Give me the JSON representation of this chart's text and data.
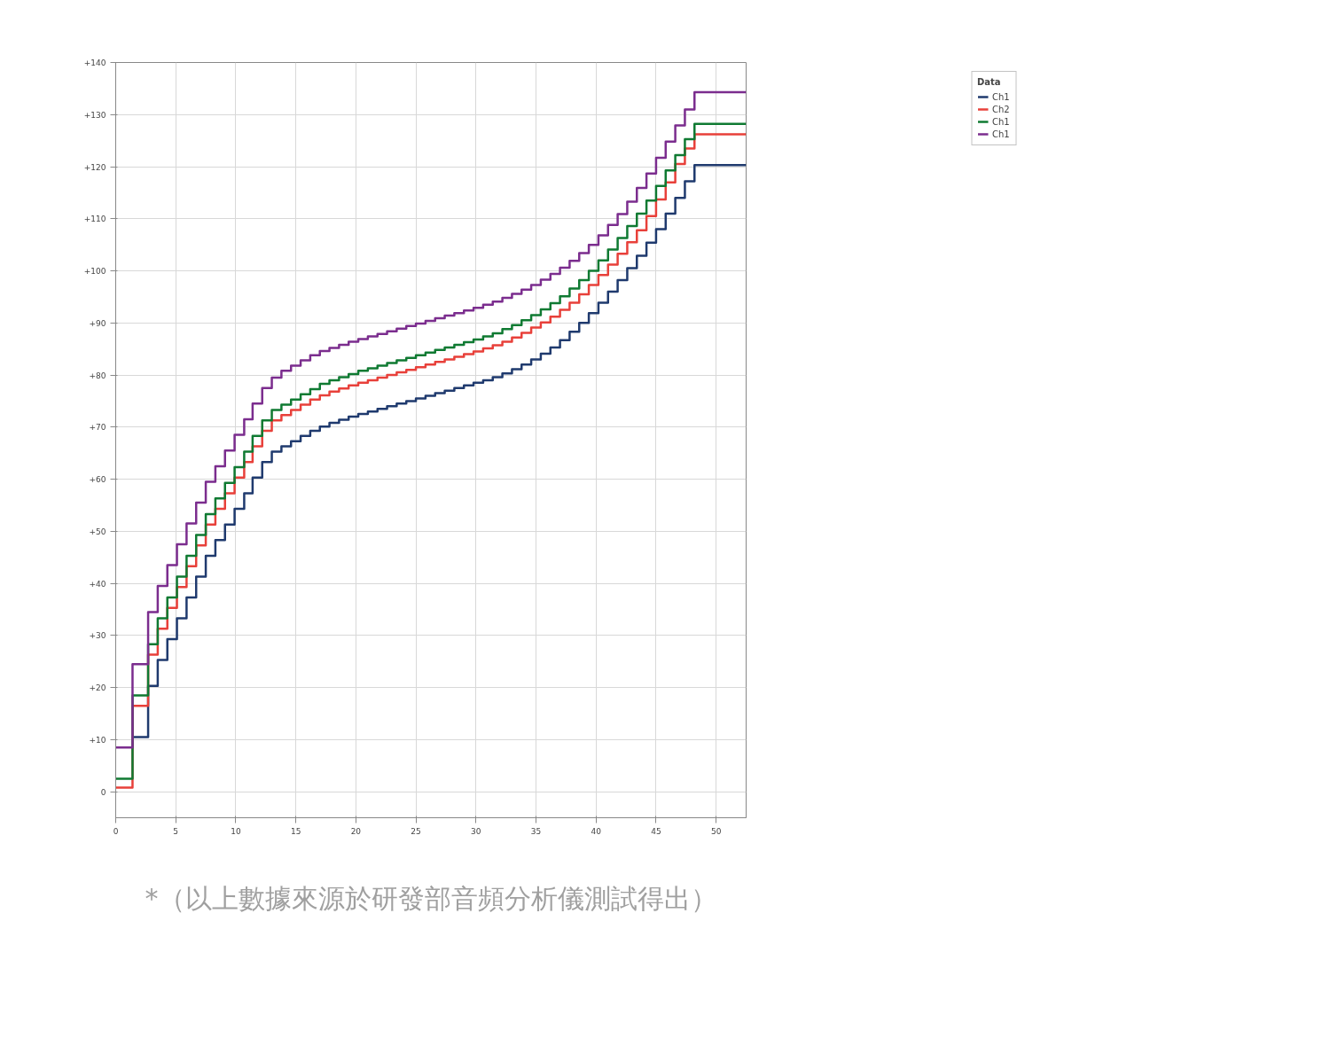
{
  "chart_data": {
    "type": "step",
    "x": [
      0,
      1.4,
      2.7,
      3.5,
      4.3,
      5.1,
      5.9,
      6.7,
      7.5,
      8.3,
      9.1,
      9.9,
      10.7,
      11.4,
      12.2,
      13.0,
      13.8,
      14.6,
      15.4,
      16.2,
      17.0,
      17.8,
      18.6,
      19.4,
      20.2,
      21.0,
      21.8,
      22.6,
      23.4,
      24.2,
      25.0,
      25.8,
      26.6,
      27.4,
      28.2,
      29.0,
      29.8,
      30.6,
      31.4,
      32.2,
      33.0,
      33.8,
      34.6,
      35.4,
      36.2,
      37.0,
      37.8,
      38.6,
      39.4,
      40.2,
      41.0,
      41.8,
      42.6,
      43.4,
      44.2,
      45.0,
      45.8,
      46.6,
      47.4,
      48.2,
      52.5
    ],
    "series": [
      {
        "name": "Ch1",
        "color": "#1f3a6e",
        "values": [
          null,
          10.5,
          20.3,
          25.3,
          29.3,
          33.3,
          37.3,
          41.3,
          45.3,
          48.3,
          51.3,
          54.3,
          57.3,
          60.3,
          63.3,
          65.3,
          66.3,
          67.3,
          68.3,
          69.3,
          70.1,
          70.8,
          71.4,
          72.0,
          72.5,
          73.0,
          73.5,
          74.0,
          74.5,
          75.0,
          75.5,
          76.0,
          76.5,
          77.0,
          77.5,
          78.0,
          78.5,
          79.0,
          79.6,
          80.3,
          81.1,
          82.0,
          83.0,
          84.1,
          85.3,
          86.7,
          88.3,
          90.0,
          91.9,
          93.9,
          96.0,
          98.2,
          100.5,
          102.9,
          105.4,
          108.0,
          111.0,
          114.0,
          117.2,
          120.3,
          120.3
        ]
      },
      {
        "name": "Ch2",
        "color": "#e8403a",
        "values": [
          0.8,
          16.5,
          26.3,
          31.3,
          35.3,
          39.3,
          43.3,
          47.3,
          51.3,
          54.3,
          57.3,
          60.3,
          63.3,
          66.3,
          69.3,
          71.3,
          72.3,
          73.3,
          74.3,
          75.3,
          76.1,
          76.8,
          77.4,
          78.0,
          78.5,
          79.0,
          79.5,
          80.0,
          80.5,
          81.0,
          81.5,
          82.0,
          82.5,
          83.0,
          83.5,
          84.0,
          84.5,
          85.1,
          85.7,
          86.4,
          87.2,
          88.1,
          89.1,
          90.1,
          91.2,
          92.5,
          93.9,
          95.5,
          97.3,
          99.2,
          101.2,
          103.3,
          105.5,
          107.8,
          110.5,
          113.7,
          117.0,
          120.5,
          123.5,
          126.2,
          126.2
        ]
      },
      {
        "name": "Ch1",
        "color": "#0f7a32",
        "values": [
          2.5,
          18.5,
          28.3,
          33.3,
          37.3,
          41.3,
          45.3,
          49.3,
          53.3,
          56.3,
          59.3,
          62.3,
          65.3,
          68.3,
          71.3,
          73.3,
          74.3,
          75.3,
          76.3,
          77.3,
          78.3,
          79.0,
          79.6,
          80.2,
          80.8,
          81.3,
          81.8,
          82.3,
          82.8,
          83.3,
          83.8,
          84.3,
          84.8,
          85.3,
          85.8,
          86.3,
          86.8,
          87.4,
          88.0,
          88.8,
          89.6,
          90.5,
          91.5,
          92.6,
          93.8,
          95.1,
          96.6,
          98.2,
          100.0,
          102.0,
          104.1,
          106.3,
          108.6,
          111.0,
          113.5,
          116.3,
          119.3,
          122.2,
          125.3,
          128.2,
          128.2
        ]
      },
      {
        "name": "Ch1",
        "color": "#7b2d8e",
        "values": [
          8.5,
          24.5,
          34.5,
          39.5,
          43.5,
          47.5,
          51.5,
          55.5,
          59.5,
          62.5,
          65.5,
          68.5,
          71.5,
          74.5,
          77.5,
          79.5,
          80.8,
          81.8,
          82.8,
          83.8,
          84.6,
          85.2,
          85.8,
          86.4,
          86.9,
          87.4,
          87.9,
          88.4,
          88.9,
          89.4,
          89.9,
          90.4,
          90.9,
          91.4,
          91.9,
          92.4,
          92.9,
          93.5,
          94.1,
          94.8,
          95.6,
          96.4,
          97.3,
          98.3,
          99.4,
          100.6,
          101.9,
          103.4,
          105.0,
          106.8,
          108.8,
          110.9,
          113.3,
          115.9,
          118.7,
          121.7,
          124.8,
          127.9,
          131.0,
          134.3,
          134.3
        ]
      }
    ],
    "xlim": [
      0,
      52.5
    ],
    "ylim": [
      -5,
      140
    ],
    "xticks": [
      0,
      5,
      10,
      15,
      20,
      25,
      30,
      35,
      40,
      45,
      50
    ],
    "yticks": [
      {
        "value": 140,
        "label": "+140"
      },
      {
        "value": 130,
        "label": "+130"
      },
      {
        "value": 120,
        "label": "+120"
      },
      {
        "value": 110,
        "label": "+110"
      },
      {
        "value": 100,
        "label": "+100"
      },
      {
        "value": 90,
        "label": "+90"
      },
      {
        "value": 80,
        "label": "+80"
      },
      {
        "value": 70,
        "label": "+70"
      },
      {
        "value": 60,
        "label": "+60"
      },
      {
        "value": 50,
        "label": "+50"
      },
      {
        "value": 40,
        "label": "+40"
      },
      {
        "value": 30,
        "label": "+30"
      },
      {
        "value": 20,
        "label": "+20"
      },
      {
        "value": 10,
        "label": "+10"
      },
      0
    ],
    "grid": true,
    "legend": "top right",
    "legend_title": "Data",
    "annotations": [
      "*（以上數據來源於研發部音頻分析儀測試得出）"
    ]
  }
}
